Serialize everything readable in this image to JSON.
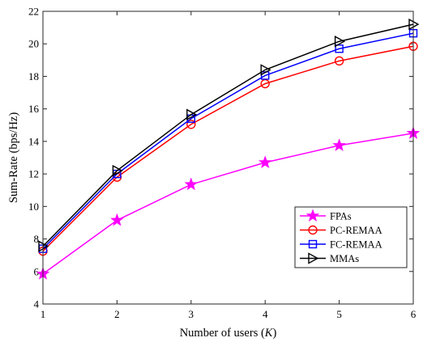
{
  "chart_data": {
    "type": "line",
    "title": "",
    "xlabel": "Number of users (",
    "xlabel_var": "K",
    "xlabel_end": ")",
    "ylabel": "Sum-Rate (bps/Hz)",
    "xlim": [
      1,
      6
    ],
    "ylim": [
      4,
      22
    ],
    "x_ticks": [
      "1",
      "2",
      "3",
      "4",
      "5",
      "6"
    ],
    "y_ticks": [
      "4",
      "6",
      "8",
      "10",
      "12",
      "14",
      "16",
      "18",
      "20",
      "22"
    ],
    "grid": false,
    "legend_position": "lower-right",
    "x": [
      1,
      2,
      3,
      4,
      5,
      6
    ],
    "series": [
      {
        "name": "FPAs",
        "color": "#ff00ff",
        "marker": "star",
        "values": [
          5.85,
          9.15,
          11.35,
          12.7,
          13.75,
          14.5
        ]
      },
      {
        "name": "PC-REMAA",
        "color": "#ff0000",
        "marker": "circle",
        "values": [
          7.25,
          11.8,
          15.05,
          17.55,
          18.95,
          19.85
        ]
      },
      {
        "name": "FC-REMAA",
        "color": "#0000ff",
        "marker": "square",
        "values": [
          7.4,
          12.0,
          15.4,
          18.05,
          19.7,
          20.65
        ]
      },
      {
        "name": "MMAs",
        "color": "#000000",
        "marker": "triangle-right",
        "values": [
          7.55,
          12.2,
          15.65,
          18.4,
          20.15,
          21.2
        ]
      }
    ]
  }
}
